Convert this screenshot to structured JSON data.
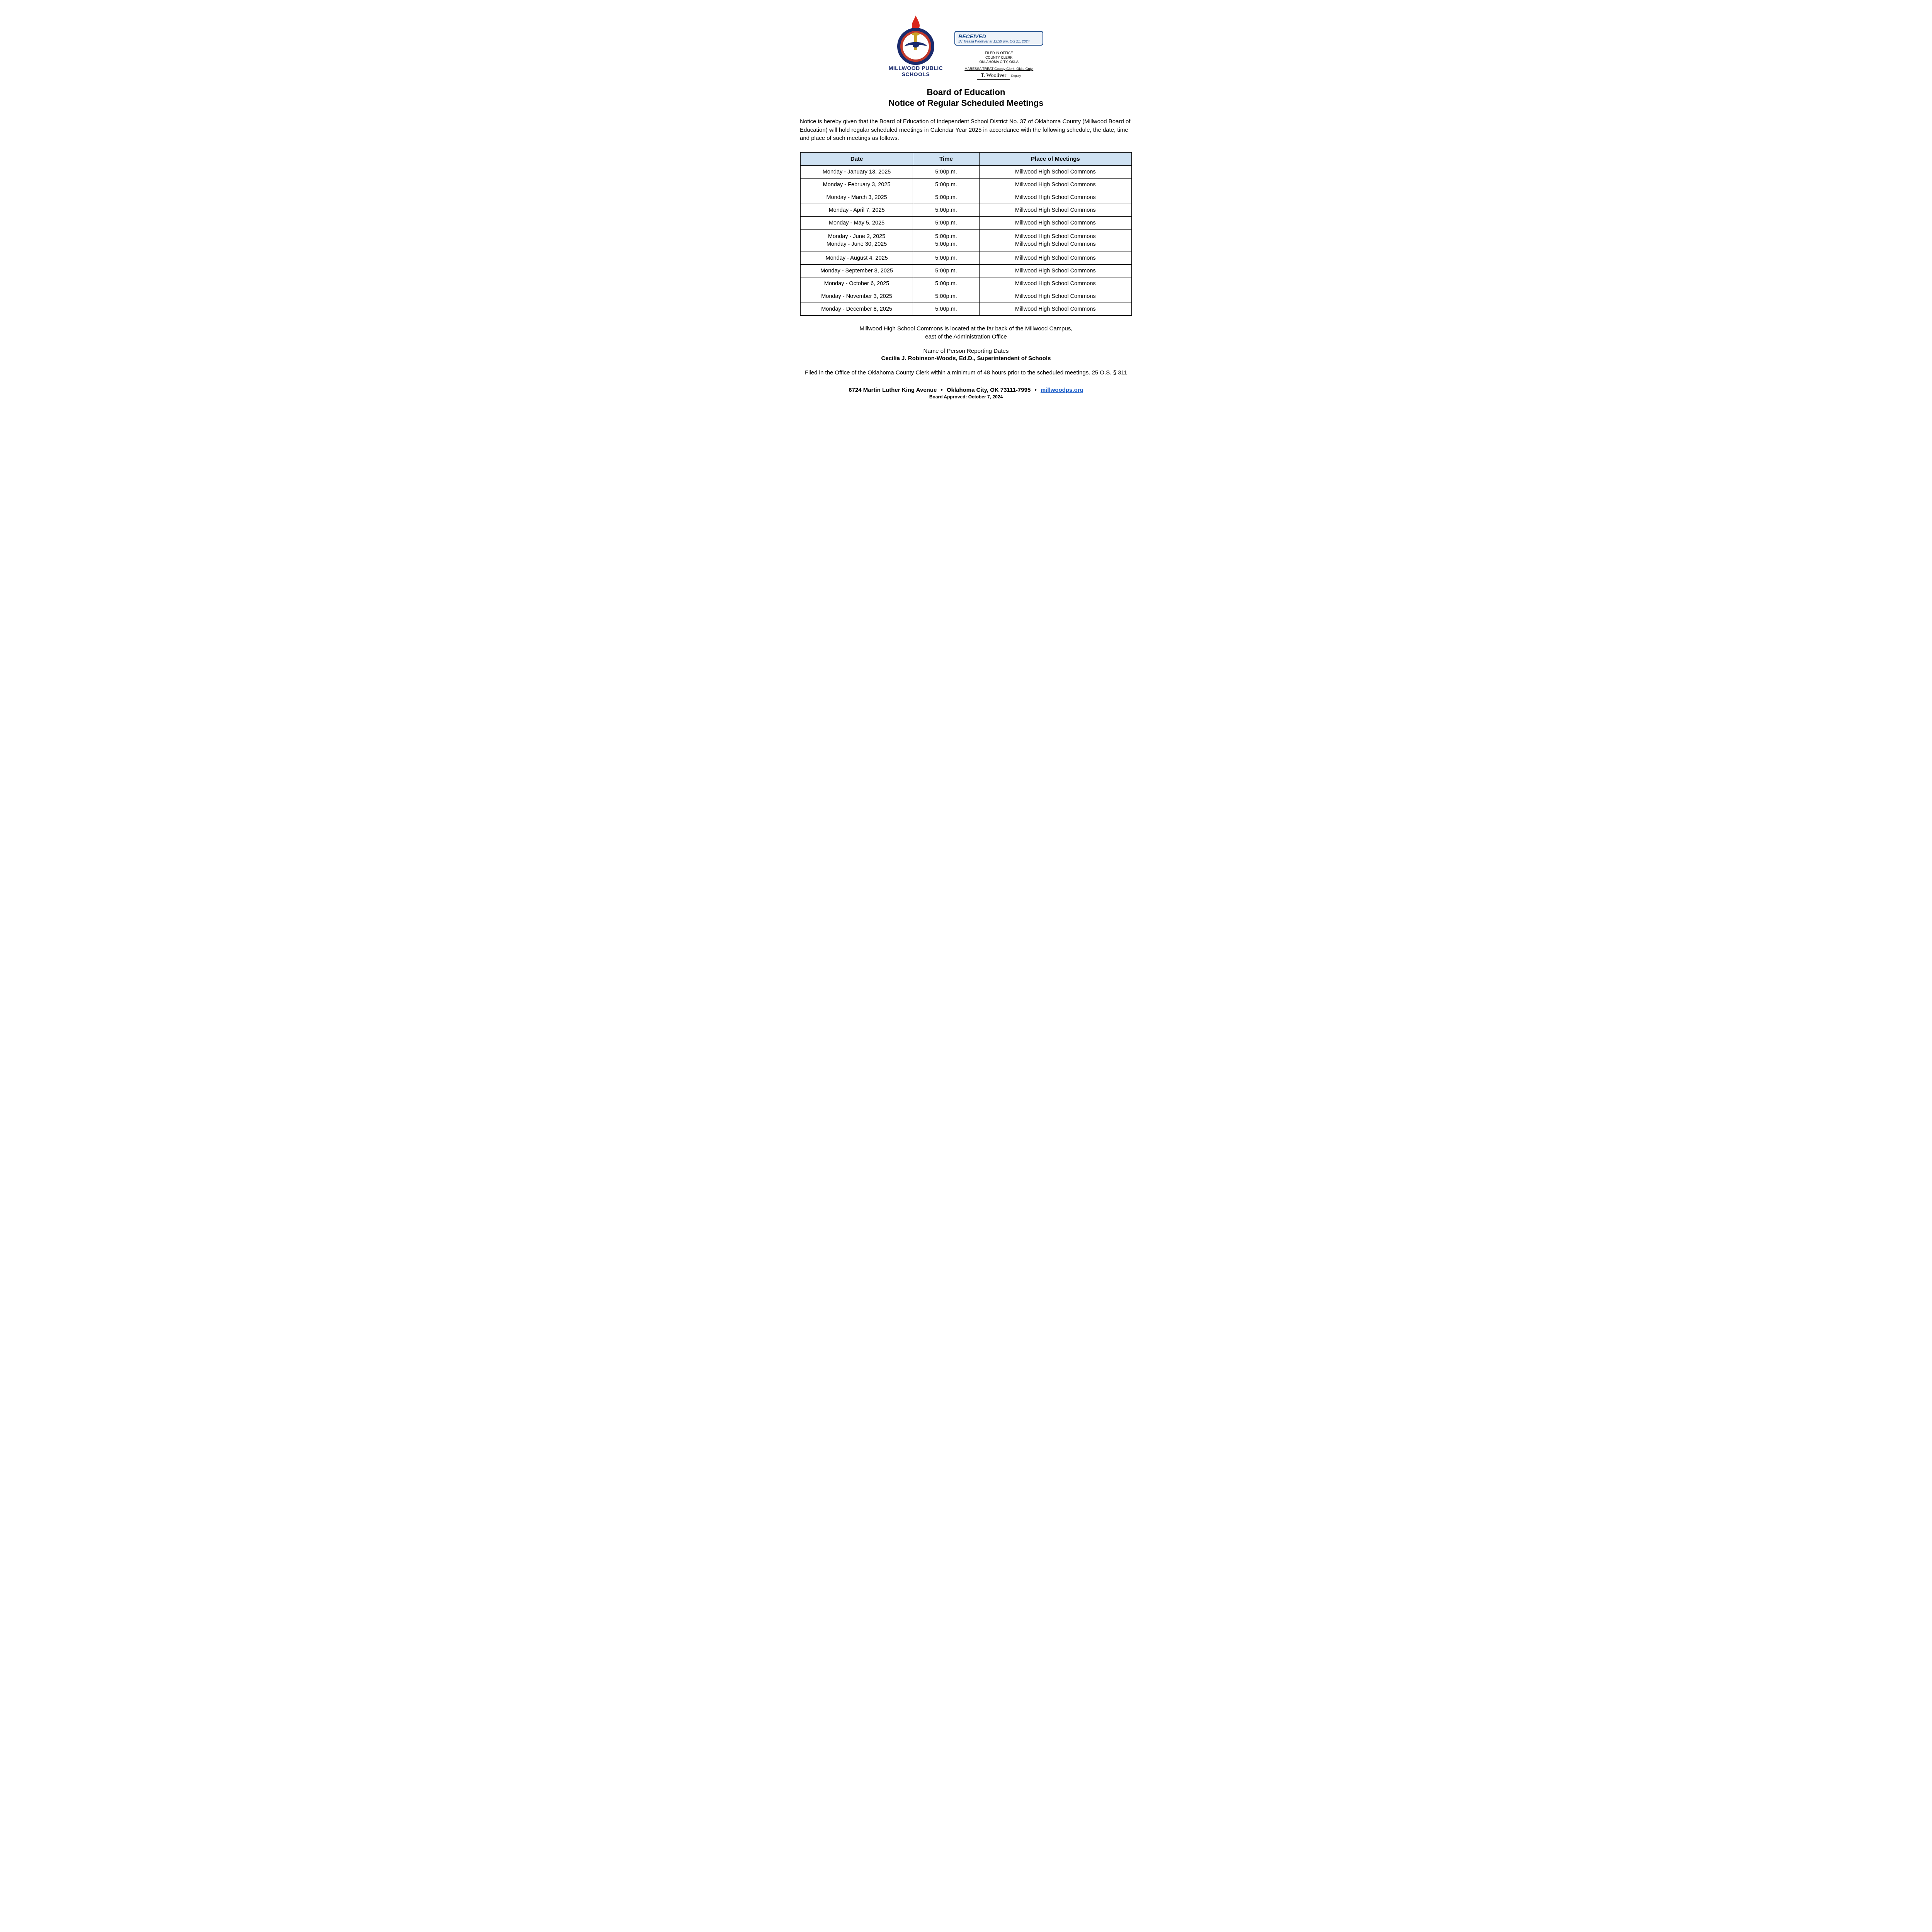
{
  "colors": {
    "brand_navy": "#1a2b6d",
    "stamp_blue": "#1a4a8a",
    "table_header_bg": "#cfe2f3",
    "link_blue": "#1a5cc8",
    "page_bg": "#ffffff",
    "text": "#000000",
    "flame_red": "#d9261c",
    "ring_red": "#c0392b",
    "torch_gold": "#c9a227"
  },
  "logo": {
    "org_line1": "MILLWOOD PUBLIC",
    "org_line2": "SCHOOLS"
  },
  "stamp": {
    "received_title": "RECEIVED",
    "received_sub": "By Treasa Wooliver at 12:39 pm, Oct 21, 2024",
    "filed_line1": "FILED IN OFFICE",
    "filed_line2": "COUNTY CLERK",
    "filed_line3": "OKLAHOMA CITY, OKLA",
    "clerk_line": "MARESSA TREAT County Clerk, Okla. Cnty.",
    "signature": "T. Wooliver",
    "deputy": "Deputy"
  },
  "title": "Board of Education",
  "subtitle": "Notice of Regular Scheduled Meetings",
  "notice_paragraph": "Notice is hereby given that the Board of Education of Independent School District No. 37 of Oklahoma County (Millwood Board of Education) will hold regular scheduled meetings in Calendar Year 2025 in accordance with the following schedule, the date, time and place of such meetings as follows.",
  "table": {
    "headers": {
      "date": "Date",
      "time": "Time",
      "place": "Place of Meetings"
    },
    "col_widths_pct": [
      34,
      20,
      46
    ],
    "rows": [
      {
        "date": "Monday - January 13, 2025",
        "time": "5:00p.m.",
        "place": "Millwood High School Commons"
      },
      {
        "date": "Monday - February 3, 2025",
        "time": "5:00p.m.",
        "place": "Millwood High School Commons"
      },
      {
        "date": "Monday - March 3, 2025",
        "time": "5:00p.m.",
        "place": "Millwood High School Commons"
      },
      {
        "date": "Monday - April 7, 2025",
        "time": "5:00p.m.",
        "place": "Millwood High School Commons"
      },
      {
        "date": "Monday - May 5, 2025",
        "time": "5:00p.m.",
        "place": "Millwood High School Commons"
      },
      {
        "date": "Monday - June 2, 2025\nMonday - June 30, 2025",
        "time": "5:00p.m.\n5:00p.m.",
        "place": "Millwood High School Commons\nMillwood High School Commons"
      },
      {
        "date": "Monday - August  4, 2025",
        "time": "5:00p.m.",
        "place": "Millwood High School Commons"
      },
      {
        "date": "Monday - September 8, 2025",
        "time": "5:00p.m.",
        "place": "Millwood High School Commons"
      },
      {
        "date": "Monday - October 6, 2025",
        "time": "5:00p.m.",
        "place": "Millwood High School Commons"
      },
      {
        "date": "Monday - November 3, 2025",
        "time": "5:00p.m.",
        "place": "Millwood High School Commons"
      },
      {
        "date": "Monday - December 8, 2025",
        "time": "5:00p.m.",
        "place": "Millwood High School Commons"
      }
    ]
  },
  "location_note": "Millwood High School Commons is located at the far back of the Millwood Campus,\neast of the Administration Office",
  "reporter": {
    "label": "Name of Person Reporting Dates",
    "name": "Cecilia J. Robinson-Woods, Ed.D., Superintendent of Schools"
  },
  "filed_note": "Filed in the Office of the Oklahoma County Clerk within a minimum of 48 hours prior to the scheduled meetings.  25 O.S. § 311",
  "footer": {
    "address": "6724 Martin Luther King Avenue",
    "city": "Oklahoma City, OK  73111-7995",
    "link_text": "millwoodps.org",
    "approved": "Board Approved:  October 7, 2024"
  }
}
